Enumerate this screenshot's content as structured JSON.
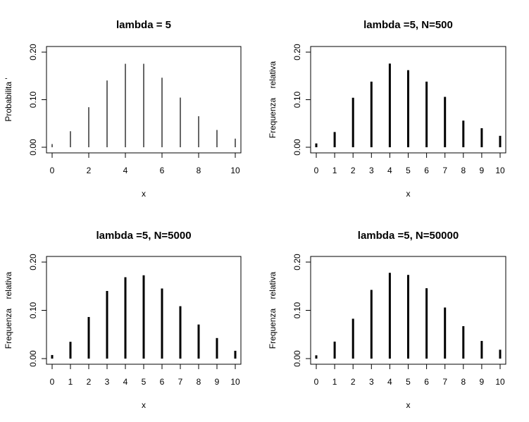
{
  "colors": {
    "background": "#ffffff",
    "ink": "#000000"
  },
  "chart_data": [
    {
      "type": "bar",
      "style": "vertical spikes",
      "title": "lambda = 5",
      "xlabel": "x",
      "ylabel": "Probabilita '",
      "xlim": [
        0,
        10
      ],
      "ylim": [
        0,
        0.2
      ],
      "xticks": [
        "0",
        "2",
        "4",
        "6",
        "8",
        "10"
      ],
      "yticks": [
        "0.00",
        "0.10",
        "0.20"
      ],
      "x": [
        0,
        1,
        2,
        3,
        4,
        5,
        6,
        7,
        8,
        9,
        10
      ],
      "values": [
        0.0067,
        0.0337,
        0.0842,
        0.1404,
        0.1755,
        0.1755,
        0.1462,
        0.1044,
        0.0653,
        0.0363,
        0.0181
      ],
      "grid": false
    },
    {
      "type": "bar",
      "style": "vertical spikes",
      "title": "lambda =5, N=500",
      "xlabel": "x",
      "ylabel": "Frequenza    relativa",
      "xlim": [
        0,
        10
      ],
      "ylim": [
        0,
        0.2
      ],
      "xticks": [
        "0",
        "1",
        "2",
        "3",
        "4",
        "5",
        "6",
        "7",
        "8",
        "9",
        "10"
      ],
      "yticks": [
        "0.00",
        "0.10",
        "0.20"
      ],
      "x": [
        0,
        1,
        2,
        3,
        4,
        5,
        6,
        7,
        8,
        9,
        10
      ],
      "values": [
        0.008,
        0.032,
        0.104,
        0.138,
        0.176,
        0.162,
        0.138,
        0.106,
        0.056,
        0.04,
        0.024
      ],
      "grid": false
    },
    {
      "type": "bar",
      "style": "vertical spikes",
      "title": "lambda =5, N=5000",
      "xlabel": "x",
      "ylabel": "Frequenza    relativa",
      "xlim": [
        0,
        10
      ],
      "ylim": [
        0,
        0.2
      ],
      "xticks": [
        "0",
        "1",
        "2",
        "3",
        "4",
        "5",
        "6",
        "7",
        "8",
        "9",
        "10"
      ],
      "yticks": [
        "0.00",
        "0.10",
        "0.20"
      ],
      "x": [
        0,
        1,
        2,
        3,
        4,
        5,
        6,
        7,
        8,
        9,
        10
      ],
      "values": [
        0.0074,
        0.0348,
        0.0862,
        0.1402,
        0.1686,
        0.1726,
        0.1452,
        0.1086,
        0.0706,
        0.0426,
        0.0162
      ],
      "grid": false
    },
    {
      "type": "bar",
      "style": "vertical spikes",
      "title": "lambda =5, N=50000",
      "xlabel": "x",
      "ylabel": "Frequenza    relativa",
      "xlim": [
        0,
        10
      ],
      "ylim": [
        0,
        0.2
      ],
      "xticks": [
        "0",
        "1",
        "2",
        "3",
        "4",
        "5",
        "6",
        "7",
        "8",
        "9",
        "10"
      ],
      "yticks": [
        "0.00",
        "0.10",
        "0.20"
      ],
      "x": [
        0,
        1,
        2,
        3,
        4,
        5,
        6,
        7,
        8,
        9,
        10
      ],
      "values": [
        0.0068,
        0.0352,
        0.0826,
        0.1424,
        0.1778,
        0.1734,
        0.1458,
        0.1058,
        0.0672,
        0.0366,
        0.0184
      ],
      "grid": false
    }
  ]
}
